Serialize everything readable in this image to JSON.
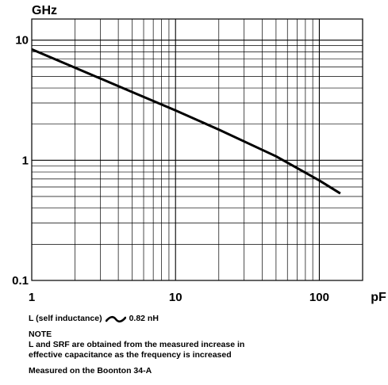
{
  "chart_data": {
    "type": "line",
    "x_scale": "log",
    "y_scale": "log",
    "xlim": [
      1,
      200
    ],
    "ylim": [
      0.1,
      15
    ],
    "x_unit": "pF",
    "y_unit": "GHz",
    "x_ticks": [
      "1",
      "10",
      "100"
    ],
    "y_ticks": [
      "10",
      "1",
      "0.1"
    ],
    "grid": true,
    "series": [
      {
        "x": [
          1,
          2,
          5,
          10,
          20,
          50,
          100,
          140
        ],
        "y": [
          8.4,
          5.9,
          3.7,
          2.6,
          1.8,
          1.08,
          0.68,
          0.53
        ]
      }
    ]
  },
  "notes": {
    "inductance_label": "L (self inductance)",
    "inductance_value": "0.82 nH",
    "note_heading": "NOTE",
    "note_line1": "L and SRF are obtained from the measured increase in",
    "note_line2": "effective capacitance as the frequency is increased",
    "measured": "Measured on the Boonton 34-A"
  }
}
